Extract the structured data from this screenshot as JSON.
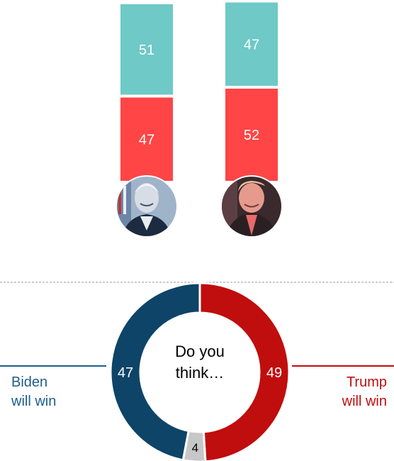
{
  "chart_data": [
    {
      "type": "bar",
      "stacked": true,
      "categories": [
        "Biden",
        "Trump"
      ],
      "series": [
        {
          "values": [
            51,
            47
          ],
          "color": "#6ec9c7"
        },
        {
          "values": [
            47,
            52
          ],
          "color": "#ff4545"
        }
      ],
      "portraits": [
        "biden-portrait",
        "trump-portrait"
      ]
    },
    {
      "type": "pie",
      "center_text": [
        "Do you",
        "think…"
      ],
      "slices": [
        {
          "label": "Biden will win",
          "label_lines": [
            "Biden",
            "will win"
          ],
          "value": 47,
          "display": "47",
          "color": "#0d4468"
        },
        {
          "label": "Trump will win",
          "label_lines": [
            "Trump",
            "will win"
          ],
          "value": 49,
          "display": "49",
          "color": "#c00d0d"
        },
        {
          "label": "",
          "value": 4,
          "display": "4",
          "color": "#c7c7c7"
        }
      ]
    }
  ],
  "colors": {
    "divider": "#9a9a9a",
    "biden_label": "#1d5f8a",
    "trump_label": "#c00d0d"
  }
}
